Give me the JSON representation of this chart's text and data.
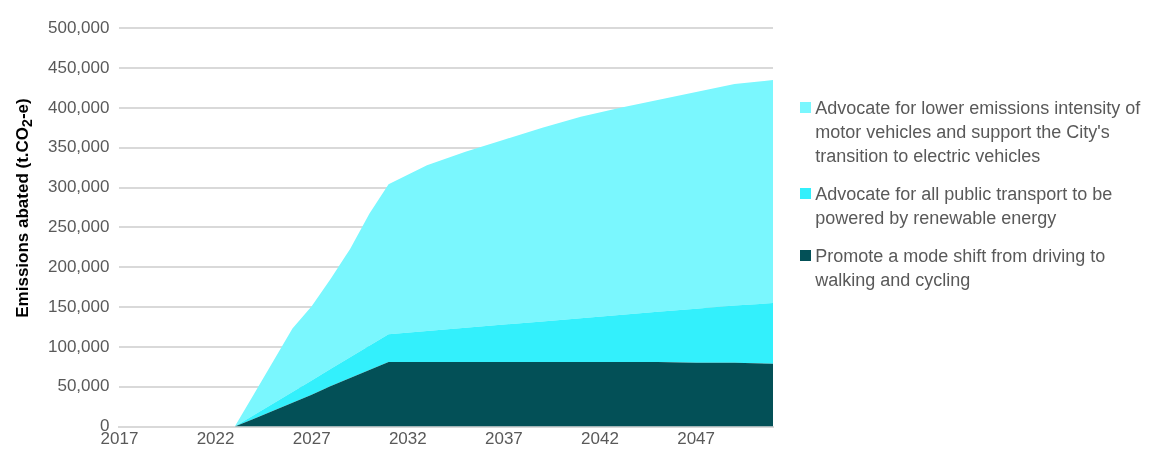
{
  "chart_data": {
    "type": "area",
    "stacked": true,
    "ylabel": "Emissions abated (t.CO$_{2}$-e)",
    "x": [
      2017,
      2023,
      2024,
      2025,
      2026,
      2027,
      2028,
      2029,
      2030,
      2031,
      2033,
      2035,
      2037,
      2039,
      2041,
      2043,
      2045,
      2047,
      2049,
      2051
    ],
    "xlim": [
      2017,
      2051
    ],
    "xticks": [
      2017,
      2022,
      2027,
      2032,
      2037,
      2042,
      2047
    ],
    "ylim": [
      0,
      500000
    ],
    "yticks": [
      {
        "value": 0,
        "label": "0"
      },
      {
        "value": 50000,
        "label": "50,000"
      },
      {
        "value": 100000,
        "label": "100,000"
      },
      {
        "value": 150000,
        "label": "150,000"
      },
      {
        "value": 200000,
        "label": "200,000"
      },
      {
        "value": 250000,
        "label": "250,000"
      },
      {
        "value": 300000,
        "label": "300,000"
      },
      {
        "value": 350000,
        "label": "350,000"
      },
      {
        "value": 400000,
        "label": "400,000"
      },
      {
        "value": 450000,
        "label": "450,000"
      },
      {
        "value": 500000,
        "label": "500,000"
      }
    ],
    "grid": "y",
    "legend": "right",
    "series": [
      {
        "name": "Promote a mode shift from driving to walking and cycling",
        "color": "#035057",
        "values": [
          0,
          0,
          10000,
          20000,
          30000,
          40000,
          51000,
          61000,
          71000,
          81000,
          81000,
          81000,
          81000,
          81000,
          81000,
          81000,
          81000,
          80000,
          80000,
          79000
        ]
      },
      {
        "name": "Advocate for all public transport to be powered by renewable energy",
        "color": "#33f0fc",
        "values": [
          0,
          0,
          4500,
          9000,
          13500,
          18000,
          21500,
          26000,
          30500,
          35000,
          39000,
          43000,
          47000,
          51000,
          55000,
          59000,
          63000,
          68000,
          72000,
          76000
        ]
      },
      {
        "name": "Advocate for lower emissions intensity of motor vehicles and support the City's transition to electric vehicles",
        "color": "#7af7fe",
        "values": [
          0,
          0,
          26500,
          53000,
          79500,
          93000,
          113500,
          136000,
          165500,
          188000,
          208000,
          221000,
          232000,
          243000,
          253000,
          260000,
          266000,
          272000,
          278000,
          280000
        ]
      }
    ]
  }
}
